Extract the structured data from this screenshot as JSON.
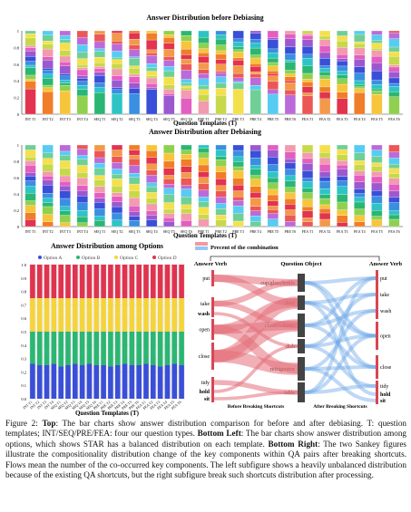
{
  "figure": {
    "top_title": "Answer Distribution before Debiasing",
    "mid_title": "Answer Distribution after Debiasing",
    "xlabel": "Question Templates (T)",
    "top_yticks": [
      "1",
      "0.8",
      "0.6",
      "0.4",
      "0.2",
      "0"
    ],
    "templates": [
      "INT T1",
      "INT T2",
      "INT T3",
      "INT T4",
      "SEQ T1",
      "SEQ T2",
      "SEQ T3",
      "SEQ T4",
      "SEQ T5",
      "SEQ T6",
      "PRE T1",
      "PRE T2",
      "PRE T3",
      "PRE T4",
      "PRE T5",
      "PRE T6",
      "FEA T1",
      "FEA T2",
      "FEA T3",
      "FEA T4",
      "FEA T5",
      "FEA T6"
    ],
    "opt_chart": {
      "title": "Answer Distribution among Options",
      "legend": [
        "Option A",
        "Option B",
        "Option C",
        "Option D"
      ],
      "colors": [
        "#3a4fd8",
        "#2bb673",
        "#f5d33c",
        "#e0334f"
      ],
      "yticks": [
        "1.0",
        "0.9",
        "0.8",
        "0.7",
        "0.6",
        "0.5",
        "0.4",
        "0.3",
        "0.2",
        "0.1",
        "0.0"
      ],
      "xlabel": "Question Templates (T)"
    },
    "sankey": {
      "legend_label": "Precent of the combination",
      "left_axis": "Answer Verb",
      "middle_axis": "Question Object",
      "right_axis": "Answer Verb",
      "verbs_left": [
        "put",
        "take",
        "wash",
        "open",
        "close",
        "tidy",
        "hold",
        "sit"
      ],
      "objects": [
        "cup/glass/bottle",
        "door",
        "closet/cabinet",
        "dish",
        "refrigerator",
        "table"
      ],
      "verbs_right": [
        "put",
        "take",
        "wash",
        "open",
        "close",
        "tidy",
        "hold",
        "sit"
      ],
      "before_label": "Before Breaking Shortcuts",
      "after_label": "After Breaking Shortcuts"
    }
  },
  "chart_data": [
    {
      "type": "bar",
      "title": "Answer Distribution among Options",
      "categories": [
        "INT T1",
        "INT T2",
        "INT T3",
        "INT T4",
        "SEQ T1",
        "SEQ T2",
        "SEQ T3",
        "SEQ T4",
        "SEQ T5",
        "SEQ T6",
        "PRE T1",
        "PRE T2",
        "PRE T3",
        "PRE T4",
        "PRE T5",
        "PRE T6",
        "FEA T1",
        "FEA T2",
        "FEA T3",
        "FEA T4",
        "FEA T5",
        "FEA T6"
      ],
      "series": [
        {
          "name": "Option A",
          "values": [
            0.26,
            0.25,
            0.25,
            0.26,
            0.24,
            0.25,
            0.26,
            0.25,
            0.26,
            0.25,
            0.25,
            0.24,
            0.25,
            0.26,
            0.25,
            0.25,
            0.26,
            0.25,
            0.24,
            0.25,
            0.26,
            0.25
          ]
        },
        {
          "name": "Option B",
          "values": [
            0.24,
            0.25,
            0.25,
            0.24,
            0.26,
            0.25,
            0.24,
            0.25,
            0.24,
            0.25,
            0.25,
            0.26,
            0.25,
            0.24,
            0.25,
            0.25,
            0.24,
            0.25,
            0.26,
            0.25,
            0.24,
            0.25
          ]
        },
        {
          "name": "Option C",
          "values": [
            0.25,
            0.25,
            0.25,
            0.25,
            0.25,
            0.25,
            0.25,
            0.25,
            0.25,
            0.25,
            0.25,
            0.25,
            0.25,
            0.25,
            0.25,
            0.25,
            0.25,
            0.25,
            0.25,
            0.25,
            0.25,
            0.25
          ]
        },
        {
          "name": "Option D",
          "values": [
            0.25,
            0.25,
            0.25,
            0.25,
            0.25,
            0.25,
            0.25,
            0.25,
            0.25,
            0.25,
            0.25,
            0.25,
            0.25,
            0.25,
            0.25,
            0.25,
            0.25,
            0.25,
            0.25,
            0.25,
            0.25,
            0.25
          ]
        }
      ],
      "xlabel": "Question Templates (T)",
      "ylim": [
        0,
        1.0
      ],
      "legend": "top"
    }
  ],
  "caption": {
    "fig_label": "Figure 2:",
    "top_label": "Top",
    "top_text": ": The bar charts show answer distribution comparison for before and after debiasing. T: question templates; INT/SEQ/PRE/FEA: four our question types.",
    "bl_label": "Bottom Left",
    "bl_text": ": The bar charts show answer distribution among options, which shows STAR has a balanced distribution on each template.",
    "br_label": "Bottom Right",
    "br_text": ": The two Sankey figures illustrate the compositionality distribution change of the key components within QA pairs after breaking shortcuts. Flows mean the number of the co-occurred key components. The left subfigure shows a heavily unbalanced distribution because of the existing QA shortcuts, but the right subfigure break such shortcuts distribution after processing."
  }
}
